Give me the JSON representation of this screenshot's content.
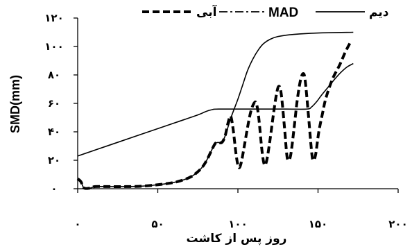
{
  "chart_data": {
    "type": "line",
    "ylabel": "SMD(mm)",
    "xlabel": "روز پس از کاشت",
    "xlim": [
      0,
      200
    ],
    "ylim": [
      0,
      120
    ],
    "x_ticks": [
      0,
      50,
      100,
      150,
      200
    ],
    "x_tick_labels": [
      "۰",
      "۵۰",
      "۱۰۰",
      "۱۵۰",
      "۲۰۰"
    ],
    "y_ticks": [
      0,
      20,
      40,
      60,
      80,
      100,
      120
    ],
    "y_tick_labels": [
      "۰",
      "۲۰",
      "۴۰",
      "۶۰",
      "۸۰",
      "۱۰۰",
      "۱۲۰"
    ],
    "grid": false,
    "legend_position": "top",
    "series": [
      {
        "name": "آبی",
        "line_style": "dashed",
        "color": "#000000",
        "points": [
          [
            0,
            7
          ],
          [
            2,
            5
          ],
          [
            4,
            0.5
          ],
          [
            8,
            0.5
          ],
          [
            11,
            1.5
          ],
          [
            20,
            1.5
          ],
          [
            30,
            1.5
          ],
          [
            40,
            1.8
          ],
          [
            50,
            2.8
          ],
          [
            58,
            4
          ],
          [
            64,
            5.5
          ],
          [
            70,
            8
          ],
          [
            74,
            11
          ],
          [
            78,
            15.5
          ],
          [
            81,
            21
          ],
          [
            84,
            28
          ],
          [
            86,
            32
          ],
          [
            88,
            32.5
          ],
          [
            90,
            32.5
          ],
          [
            92,
            37
          ],
          [
            94,
            47
          ],
          [
            95.5,
            51
          ],
          [
            97,
            42
          ],
          [
            99,
            23
          ],
          [
            100.5,
            15
          ],
          [
            102,
            18
          ],
          [
            104,
            30
          ],
          [
            106,
            43
          ],
          [
            108,
            54
          ],
          [
            110,
            60
          ],
          [
            111.5,
            60
          ],
          [
            113,
            50
          ],
          [
            115,
            27
          ],
          [
            116.5,
            17
          ],
          [
            118,
            20
          ],
          [
            120,
            34
          ],
          [
            122,
            51
          ],
          [
            124,
            66
          ],
          [
            125.5,
            72
          ],
          [
            127,
            67
          ],
          [
            129,
            44
          ],
          [
            130.5,
            24
          ],
          [
            131.5,
            20
          ],
          [
            133,
            24
          ],
          [
            135,
            42
          ],
          [
            137,
            62
          ],
          [
            139,
            76
          ],
          [
            140.7,
            81
          ],
          [
            142,
            76
          ],
          [
            144,
            52
          ],
          [
            146,
            26
          ],
          [
            147,
            20
          ],
          [
            148.5,
            24
          ],
          [
            150.5,
            40
          ],
          [
            153,
            54
          ],
          [
            155,
            64
          ],
          [
            159,
            77
          ],
          [
            163.5,
            87
          ],
          [
            167,
            96
          ],
          [
            170,
            102.5
          ]
        ]
      },
      {
        "name": "MAD",
        "line_style": "dash-dot",
        "color": "#000000",
        "points": [
          [
            0,
            23
          ],
          [
            20,
            30.7
          ],
          [
            40,
            38.4
          ],
          [
            60,
            46.1
          ],
          [
            75,
            51.9
          ],
          [
            80,
            54.3
          ],
          [
            84,
            55.6
          ],
          [
            88,
            56
          ],
          [
            110,
            56
          ],
          [
            130,
            56
          ],
          [
            143,
            56
          ],
          [
            146,
            57.5
          ],
          [
            149,
            61
          ],
          [
            152,
            65.5
          ],
          [
            156,
            71
          ],
          [
            160,
            76.5
          ],
          [
            164,
            81.5
          ],
          [
            168,
            85.5
          ],
          [
            172,
            88
          ]
        ]
      },
      {
        "name": "دیم",
        "line_style": "solid",
        "color": "#000000",
        "points": [
          [
            0,
            7
          ],
          [
            2,
            5
          ],
          [
            4,
            0.5
          ],
          [
            8,
            0.5
          ],
          [
            11,
            1.5
          ],
          [
            20,
            1.5
          ],
          [
            30,
            1.5
          ],
          [
            40,
            1.8
          ],
          [
            50,
            2.8
          ],
          [
            58,
            4
          ],
          [
            64,
            5.5
          ],
          [
            70,
            8
          ],
          [
            74,
            11
          ],
          [
            78,
            15.5
          ],
          [
            81,
            21
          ],
          [
            84,
            28
          ],
          [
            86,
            32
          ],
          [
            88,
            32.5
          ],
          [
            90,
            32.5
          ],
          [
            92,
            37
          ],
          [
            94,
            44
          ],
          [
            96,
            51
          ],
          [
            98,
            57
          ],
          [
            100,
            63
          ],
          [
            103,
            73
          ],
          [
            106,
            83
          ],
          [
            109.5,
            91.5
          ],
          [
            113,
            98
          ],
          [
            116,
            102
          ],
          [
            120,
            105
          ],
          [
            125,
            107
          ],
          [
            135,
            108.5
          ],
          [
            150,
            109.5
          ],
          [
            172,
            110
          ]
        ]
      }
    ]
  }
}
